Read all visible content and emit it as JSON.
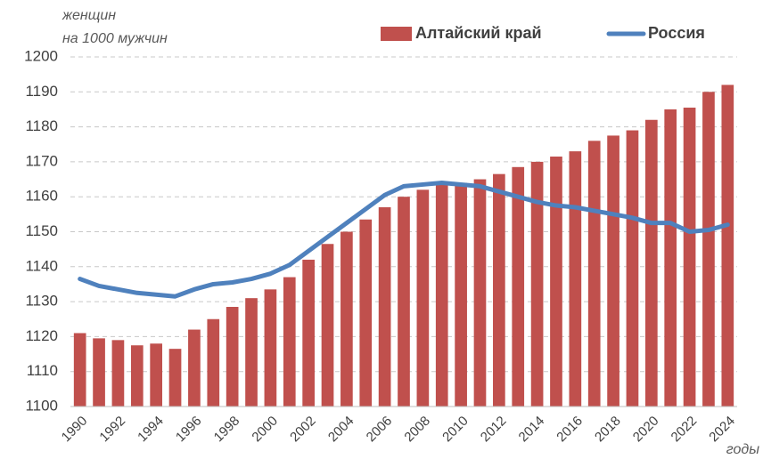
{
  "chart_data": {
    "type": "bar",
    "y_label": [
      "женщин",
      "на 1000 мужчин"
    ],
    "x_label": "годы",
    "categories": [
      "1990",
      null,
      "1992",
      null,
      "1994",
      null,
      "1996",
      null,
      "1998",
      null,
      "2000",
      null,
      "2002",
      null,
      "2004",
      null,
      "2006",
      null,
      "2008",
      null,
      "2010",
      null,
      "2012",
      null,
      "2014",
      null,
      "2016",
      null,
      "2018",
      null,
      "2020",
      null,
      "2022",
      null,
      "2024"
    ],
    "series": [
      {
        "name": "Алтайский край",
        "type": "bar",
        "color": "#c0504d",
        "values": [
          1121,
          1119.5,
          1119,
          1117.5,
          1118,
          1116.5,
          1122,
          1125,
          1128.5,
          1131,
          1133.5,
          1137,
          1142,
          1146.5,
          1150,
          1153.5,
          1157,
          1160,
          1162,
          1163.5,
          1164,
          1165,
          1166.5,
          1168.5,
          1170,
          1171.5,
          1173,
          1176,
          1177.5,
          1179,
          1182,
          1185,
          1185.5,
          1190,
          1192
        ]
      },
      {
        "name": "Россия",
        "type": "line",
        "color": "#4f81bd",
        "values": [
          1136.5,
          1134.5,
          1133.5,
          1132.5,
          1132,
          1131.5,
          1133.5,
          1135,
          1135.5,
          1136.5,
          1138,
          1140.5,
          1144.5,
          1148.5,
          1152.5,
          1156.5,
          1160.5,
          1163,
          1163.5,
          1164,
          1163.5,
          1163,
          1161.5,
          1160,
          1158.5,
          1157.5,
          1157,
          1156,
          1155,
          1154,
          1152.5,
          1152.5,
          1150,
          1150.5,
          1152
        ]
      }
    ],
    "ylim": [
      1100,
      1200
    ],
    "yticks": [
      1100,
      1110,
      1120,
      1130,
      1140,
      1150,
      1160,
      1170,
      1180,
      1190,
      1200
    ],
    "grid": true,
    "legend": "top-right"
  }
}
